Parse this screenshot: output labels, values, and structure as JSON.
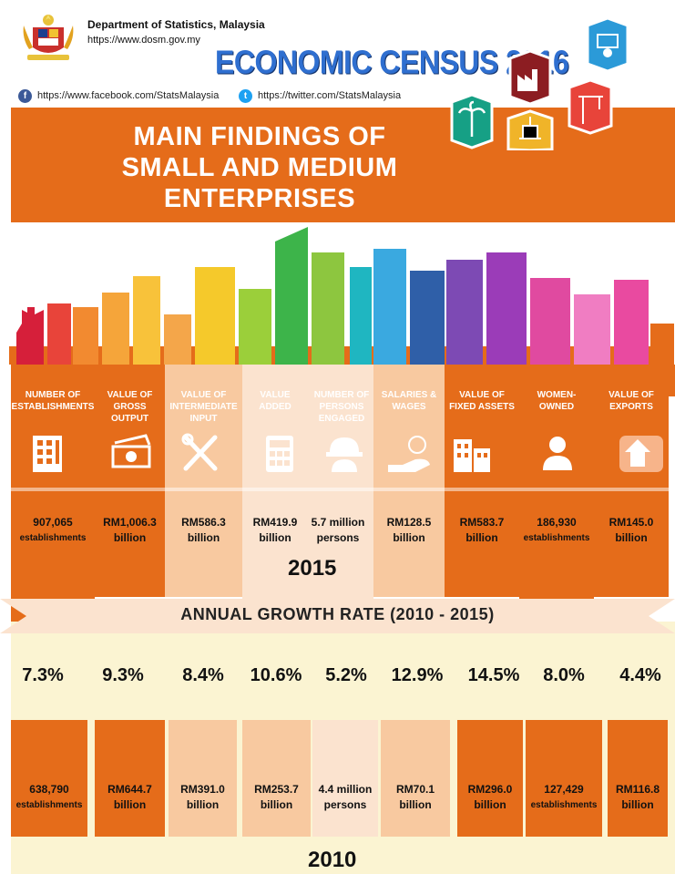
{
  "header": {
    "department": "Department of Statistics, Malaysia",
    "website": "https://www.dosm.gov.my",
    "census_title": "ECONOMIC CENSUS 2016",
    "facebook": "https://www.facebook.com/StatsMalaysia",
    "twitter": "https://twitter.com/StatsMalaysia"
  },
  "banner": {
    "title_line1": "MAIN FINDINGS OF",
    "title_line2": "SMALL AND MEDIUM",
    "title_line3": "ENTERPRISES"
  },
  "icons": [
    "building-icon",
    "money-icon",
    "tools-icon",
    "calculator-icon",
    "hardhat-worker-icon",
    "salary-hand-icon",
    "office-buildings-icon",
    "woman-icon",
    "export-arrow-icon"
  ],
  "sectors": [
    "palm-tree-icon",
    "factory-icon",
    "crane-icon",
    "oil-rig-icon",
    "computer-user-icon"
  ],
  "indicators": [
    {
      "h1": "NUMBER OF",
      "h2": "ESTABLISHMENTS",
      "h3": "",
      "v2015a": "907,065",
      "v2015b": "establishments",
      "growth": "7.3%",
      "v2010a": "638,790",
      "v2010b": "establishments"
    },
    {
      "h1": "VALUE OF",
      "h2": "GROSS",
      "h3": "OUTPUT",
      "v2015a": "RM1,006.3",
      "v2015b": "billion",
      "growth": "9.3%",
      "v2010a": "RM644.7",
      "v2010b": "billion"
    },
    {
      "h1": "VALUE OF",
      "h2": "INTERMEDIATE",
      "h3": "INPUT",
      "v2015a": "RM586.3",
      "v2015b": "billion",
      "growth": "8.4%",
      "v2010a": "RM391.0",
      "v2010b": "billion"
    },
    {
      "h1": "VALUE",
      "h2": "ADDED",
      "h3": "",
      "v2015a": "RM419.9",
      "v2015b": "billion",
      "growth": "10.6%",
      "v2010a": "RM253.7",
      "v2010b": "billion"
    },
    {
      "h1": "NUMBER OF",
      "h2": "PERSONS",
      "h3": "ENGAGED",
      "v2015a": "5.7 million",
      "v2015b": "persons",
      "growth": "5.2%",
      "v2010a": "4.4 million",
      "v2010b": "persons"
    },
    {
      "h1": "SALARIES &",
      "h2": "WAGES",
      "h3": "",
      "v2015a": "RM128.5",
      "v2015b": "billion",
      "growth": "12.9%",
      "v2010a": "RM70.1",
      "v2010b": "billion"
    },
    {
      "h1": "VALUE OF",
      "h2": "FIXED ASSETS",
      "h3": "",
      "v2015a": "RM583.7",
      "v2015b": "billion",
      "growth": "14.5%",
      "v2010a": "RM296.0",
      "v2010b": "billion"
    },
    {
      "h1": "WOMEN-",
      "h2": "OWNED",
      "h3": "",
      "v2015a": "186,930",
      "v2015b": "establishments",
      "growth": "8.0%",
      "v2010a": "127,429",
      "v2010b": "establishments"
    },
    {
      "h1": "VALUE OF",
      "h2": "EXPORTS",
      "h3": "",
      "v2015a": "RM145.0",
      "v2015b": "billion",
      "growth": "4.4%",
      "v2010a": "RM116.8",
      "v2010b": "billion"
    }
  ],
  "year_2015": "2015",
  "growth_title": "ANNUAL GROWTH RATE (2010 - 2015)",
  "year_2010": "2010",
  "colors": {
    "dark_orange": "#e56c1a",
    "light_peach": "#f8c9a0",
    "pale_peach": "#fbe3cf",
    "cream": "#fbf4d2",
    "blue": "#2f6fd0"
  }
}
